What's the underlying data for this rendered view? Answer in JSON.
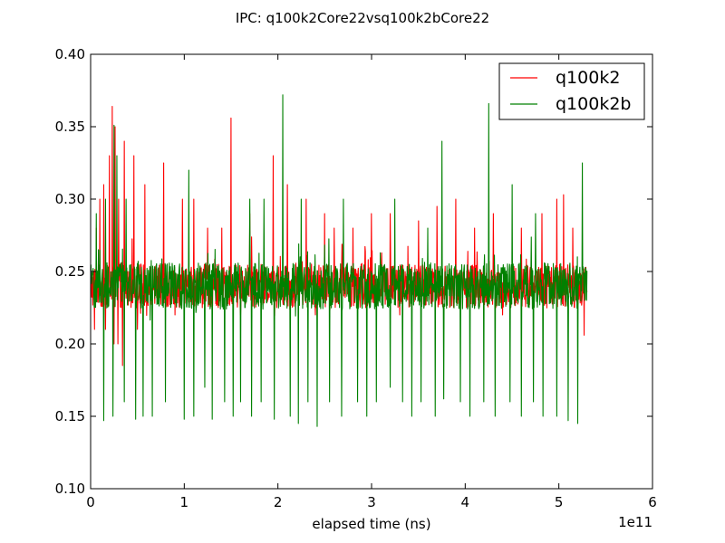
{
  "chart_data": {
    "type": "line",
    "title": "IPC: q100k2Core22vsq100k2bCore22",
    "xlabel": "elapsed time (ns)",
    "ylabel": "",
    "x_offset_label": "1e11",
    "xlim": [
      0,
      6
    ],
    "ylim": [
      0.1,
      0.4
    ],
    "x_ticks": [
      0,
      1,
      2,
      3,
      4,
      5,
      6
    ],
    "x_tick_labels": [
      "0",
      "1",
      "2",
      "3",
      "4",
      "5",
      "6"
    ],
    "y_ticks": [
      0.1,
      0.15,
      0.2,
      0.25,
      0.3,
      0.35,
      0.4
    ],
    "y_tick_labels": [
      "0.10",
      "0.15",
      "0.20",
      "0.25",
      "0.30",
      "0.35",
      "0.40"
    ],
    "grid": false,
    "legend_position": "top-right",
    "series": [
      {
        "name": "q100k2",
        "color": "#ff0000",
        "x_range": [
          0,
          5.3
        ],
        "baseline": 0.24,
        "noise_amplitude": 0.015,
        "peaks": [
          [
            0.06,
            0.28
          ],
          [
            0.1,
            0.3
          ],
          [
            0.14,
            0.31
          ],
          [
            0.2,
            0.33
          ],
          [
            0.23,
            0.364
          ],
          [
            0.26,
            0.35
          ],
          [
            0.3,
            0.3
          ],
          [
            0.36,
            0.34
          ],
          [
            0.46,
            0.33
          ],
          [
            0.58,
            0.31
          ],
          [
            0.78,
            0.325
          ],
          [
            0.98,
            0.3
          ],
          [
            1.1,
            0.3
          ],
          [
            1.25,
            0.28
          ],
          [
            1.4,
            0.28
          ],
          [
            1.5,
            0.356
          ],
          [
            1.7,
            0.29
          ],
          [
            1.95,
            0.33
          ],
          [
            2.1,
            0.31
          ],
          [
            2.3,
            0.3
          ],
          [
            2.5,
            0.29
          ],
          [
            2.6,
            0.28
          ],
          [
            2.8,
            0.28
          ],
          [
            3.0,
            0.29
          ],
          [
            3.2,
            0.29
          ],
          [
            3.5,
            0.285
          ],
          [
            3.7,
            0.295
          ],
          [
            3.9,
            0.3
          ],
          [
            4.1,
            0.28
          ],
          [
            4.3,
            0.29
          ],
          [
            4.6,
            0.28
          ],
          [
            4.82,
            0.29
          ],
          [
            4.98,
            0.3
          ],
          [
            5.05,
            0.303
          ],
          [
            5.15,
            0.28
          ]
        ],
        "dips": [
          [
            0.04,
            0.21
          ],
          [
            0.16,
            0.21
          ],
          [
            0.25,
            0.2
          ],
          [
            0.29,
            0.2
          ],
          [
            0.34,
            0.185
          ],
          [
            0.5,
            0.21
          ],
          [
            0.9,
            0.22
          ],
          [
            1.6,
            0.22
          ],
          [
            2.4,
            0.22
          ],
          [
            3.3,
            0.22
          ],
          [
            4.4,
            0.22
          ],
          [
            5.27,
            0.206
          ]
        ]
      },
      {
        "name": "q100k2b",
        "color": "#008000",
        "x_range": [
          0,
          5.3
        ],
        "baseline": 0.24,
        "noise_amplitude": 0.016,
        "peaks": [
          [
            0.06,
            0.29
          ],
          [
            0.16,
            0.3
          ],
          [
            0.25,
            0.351
          ],
          [
            0.28,
            0.33
          ],
          [
            0.38,
            0.3
          ],
          [
            0.66,
            0.36
          ],
          [
            1.0,
            0.3
          ],
          [
            1.05,
            0.32
          ],
          [
            1.3,
            0.3
          ],
          [
            1.7,
            0.3
          ],
          [
            1.85,
            0.3
          ],
          [
            2.05,
            0.372
          ],
          [
            2.25,
            0.3
          ],
          [
            2.42,
            0.32
          ],
          [
            2.7,
            0.3
          ],
          [
            2.95,
            0.3
          ],
          [
            3.25,
            0.3
          ],
          [
            3.6,
            0.28
          ],
          [
            3.75,
            0.34
          ],
          [
            3.95,
            0.28
          ],
          [
            4.25,
            0.366
          ],
          [
            4.5,
            0.31
          ],
          [
            4.6,
            0.3
          ],
          [
            4.75,
            0.29
          ],
          [
            5.25,
            0.325
          ]
        ],
        "dips": [
          [
            0.14,
            0.147
          ],
          [
            0.24,
            0.15
          ],
          [
            0.36,
            0.16
          ],
          [
            0.48,
            0.148
          ],
          [
            0.56,
            0.15
          ],
          [
            0.66,
            0.15
          ],
          [
            0.8,
            0.16
          ],
          [
            1.0,
            0.148
          ],
          [
            1.1,
            0.15
          ],
          [
            1.22,
            0.17
          ],
          [
            1.3,
            0.148
          ],
          [
            1.43,
            0.16
          ],
          [
            1.52,
            0.15
          ],
          [
            1.6,
            0.16
          ],
          [
            1.72,
            0.15
          ],
          [
            1.82,
            0.16
          ],
          [
            1.96,
            0.148
          ],
          [
            2.13,
            0.15
          ],
          [
            2.22,
            0.145
          ],
          [
            2.32,
            0.16
          ],
          [
            2.42,
            0.143
          ],
          [
            2.55,
            0.16
          ],
          [
            2.68,
            0.15
          ],
          [
            2.85,
            0.16
          ],
          [
            2.95,
            0.15
          ],
          [
            3.05,
            0.16
          ],
          [
            3.2,
            0.17
          ],
          [
            3.33,
            0.16
          ],
          [
            3.43,
            0.15
          ],
          [
            3.53,
            0.16
          ],
          [
            3.68,
            0.15
          ],
          [
            3.77,
            0.162
          ],
          [
            3.95,
            0.16
          ],
          [
            4.05,
            0.15
          ],
          [
            4.2,
            0.16
          ],
          [
            4.32,
            0.15
          ],
          [
            4.48,
            0.16
          ],
          [
            4.6,
            0.15
          ],
          [
            4.73,
            0.16
          ],
          [
            4.83,
            0.15
          ],
          [
            4.98,
            0.15
          ],
          [
            5.1,
            0.147
          ],
          [
            5.2,
            0.145
          ]
        ]
      }
    ]
  }
}
